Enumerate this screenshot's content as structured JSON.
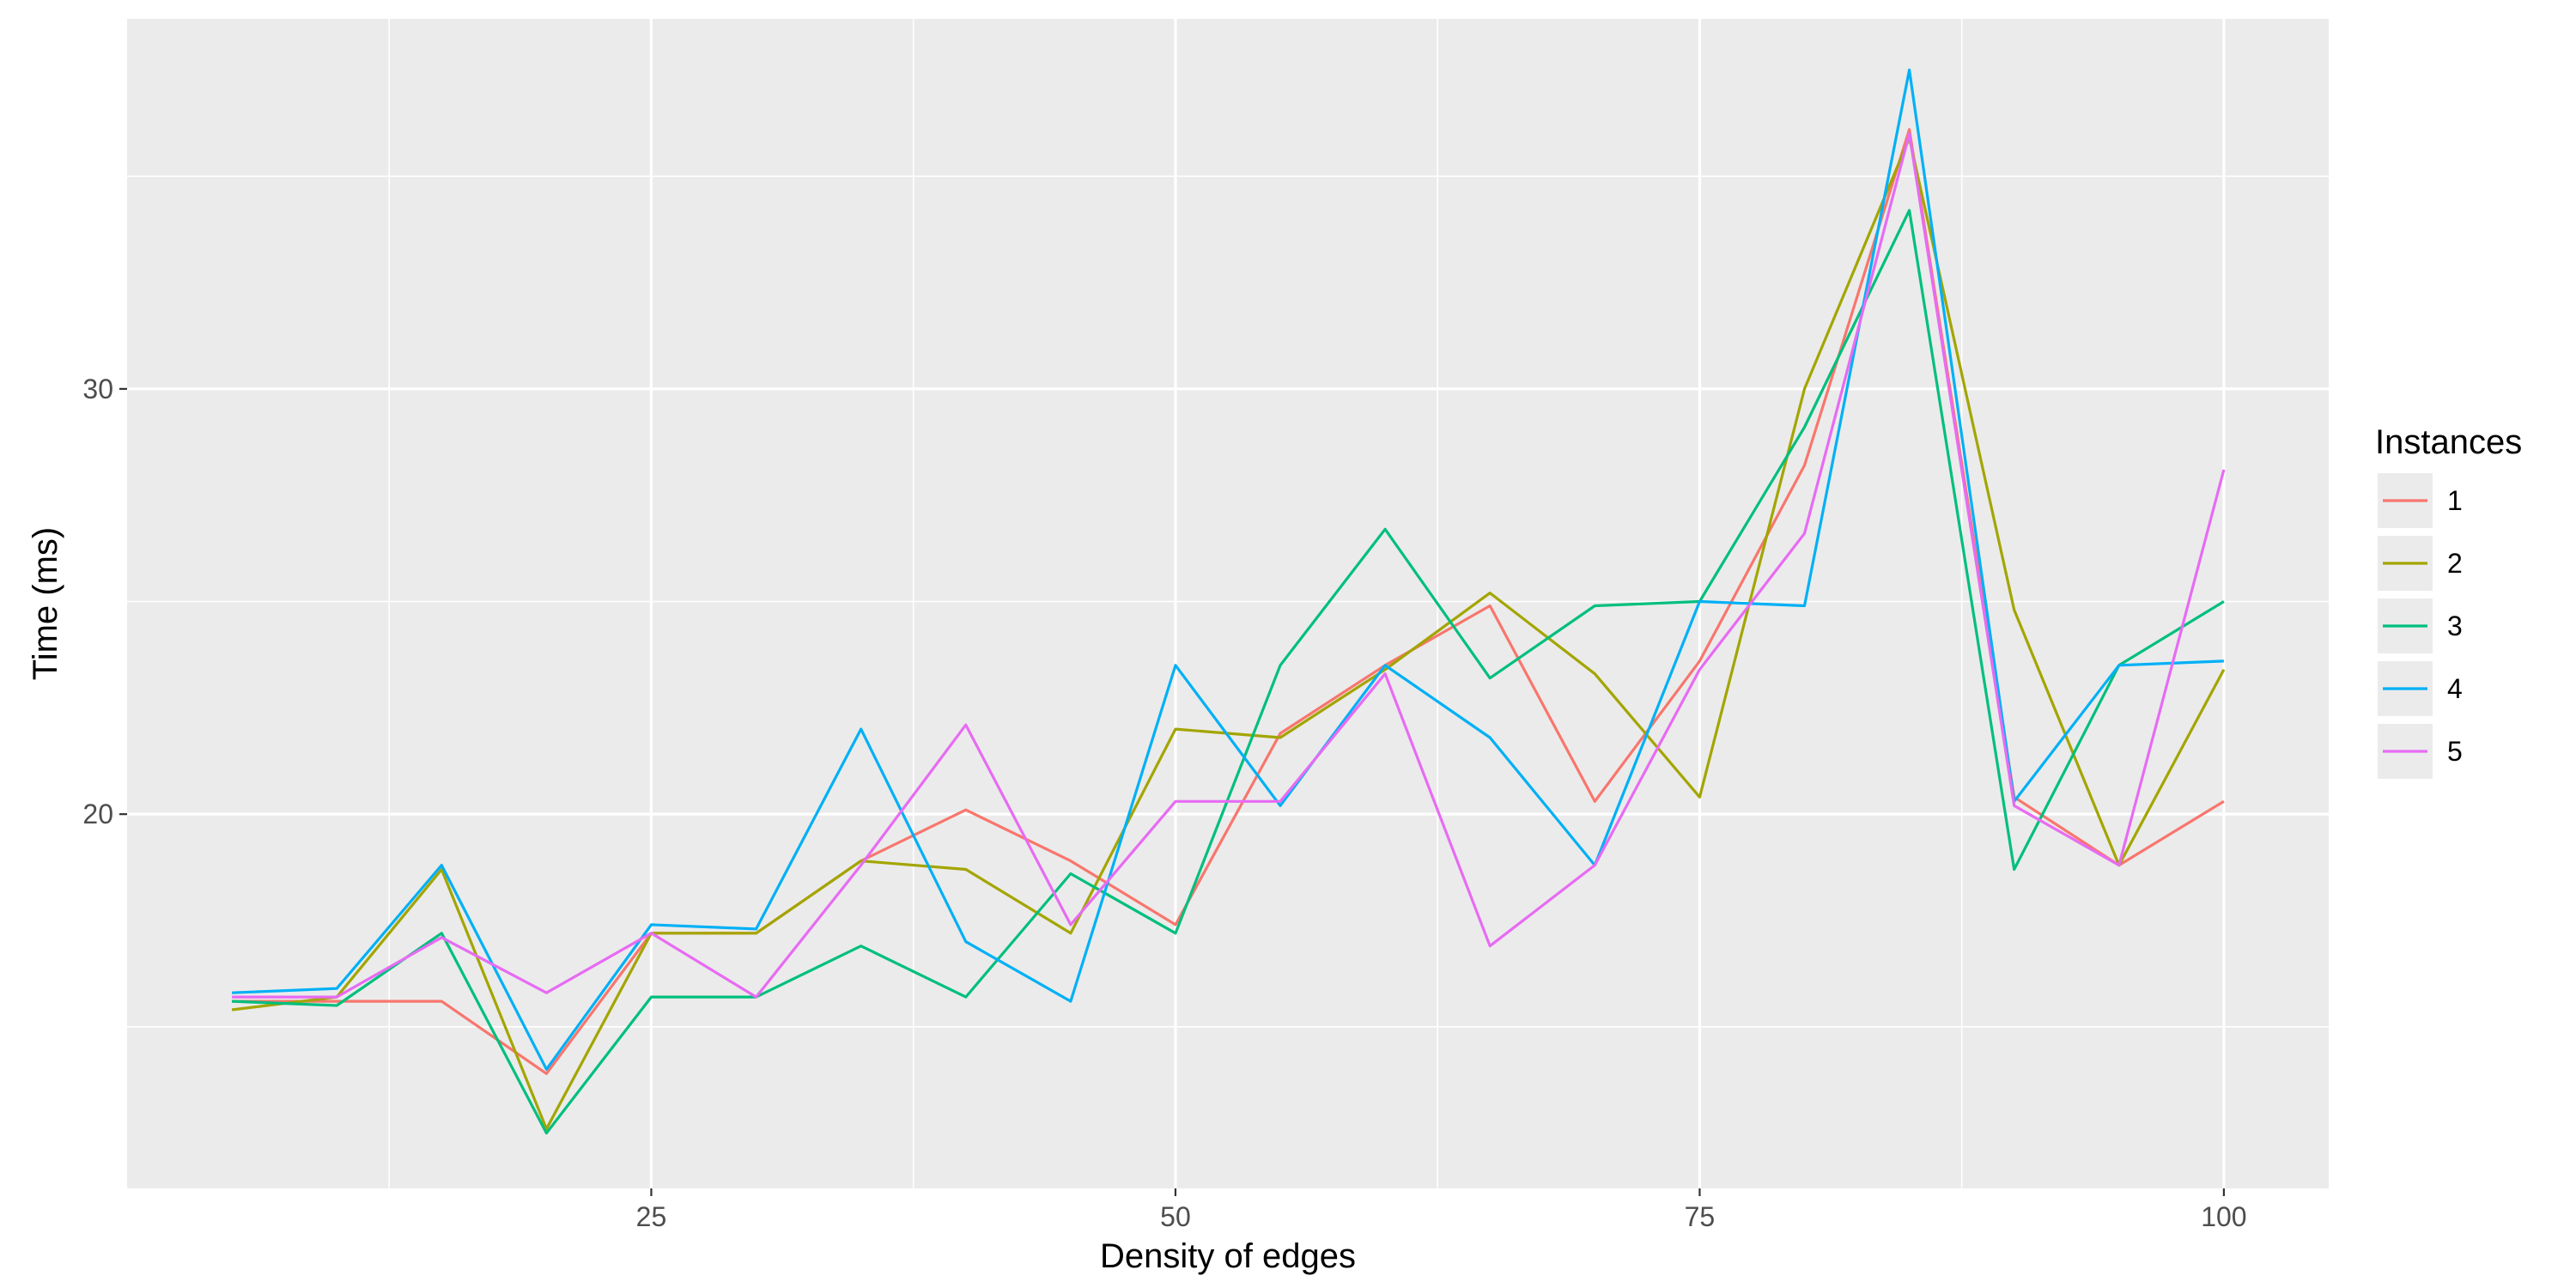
{
  "chart_data": {
    "type": "line",
    "title": "",
    "xlabel": "Density of edges",
    "ylabel": "Time (ms)",
    "xlim": [
      0,
      105
    ],
    "ylim": [
      11.2,
      38.7
    ],
    "x_ticks": [
      25,
      50,
      75,
      100
    ],
    "x_tick_labels": [
      "25",
      "50",
      "75",
      "100"
    ],
    "x_minor_ticks": [
      12.5,
      37.5,
      62.5,
      87.5
    ],
    "y_ticks": [
      20,
      30
    ],
    "y_tick_labels": [
      "20",
      "30"
    ],
    "y_minor_ticks": [
      15,
      25,
      35
    ],
    "grid": true,
    "legend": {
      "title": "Instances",
      "position": "right"
    },
    "x": [
      5,
      10,
      15,
      20,
      25,
      30,
      35,
      40,
      45,
      50,
      55,
      60,
      65,
      70,
      75,
      80,
      85,
      90,
      95,
      100
    ],
    "series": [
      {
        "name": "1",
        "color": "#F8766D",
        "values": [
          15.6,
          15.6,
          15.6,
          13.9,
          17.2,
          17.2,
          18.9,
          20.1,
          18.9,
          17.4,
          21.9,
          23.5,
          24.9,
          20.3,
          23.6,
          28.2,
          36.1,
          20.4,
          18.8,
          20.3
        ]
      },
      {
        "name": "2",
        "color": "#A3A500",
        "values": [
          15.4,
          15.7,
          18.7,
          12.6,
          17.2,
          17.2,
          18.9,
          18.7,
          17.2,
          22.0,
          21.8,
          23.4,
          25.2,
          23.3,
          20.4,
          30.0,
          35.9,
          24.8,
          18.8,
          23.4
        ]
      },
      {
        "name": "3",
        "color": "#00BF7D",
        "values": [
          15.6,
          15.5,
          17.2,
          12.5,
          15.7,
          15.7,
          16.9,
          15.7,
          18.6,
          17.2,
          23.5,
          26.7,
          23.2,
          24.9,
          25.0,
          29.1,
          34.2,
          18.7,
          23.5,
          25.0
        ]
      },
      {
        "name": "4",
        "color": "#00B0F6",
        "values": [
          15.8,
          15.9,
          18.8,
          14.0,
          17.4,
          17.3,
          22.0,
          17.0,
          15.6,
          23.5,
          20.2,
          23.5,
          21.8,
          18.8,
          25.0,
          24.9,
          37.5,
          20.3,
          23.5,
          23.6
        ]
      },
      {
        "name": "5",
        "color": "#E76BF3",
        "values": [
          15.7,
          15.7,
          17.1,
          15.8,
          17.2,
          15.7,
          18.8,
          22.1,
          17.4,
          20.3,
          20.3,
          23.3,
          16.9,
          18.8,
          23.4,
          26.6,
          36.0,
          20.2,
          18.8,
          28.1
        ]
      }
    ]
  }
}
